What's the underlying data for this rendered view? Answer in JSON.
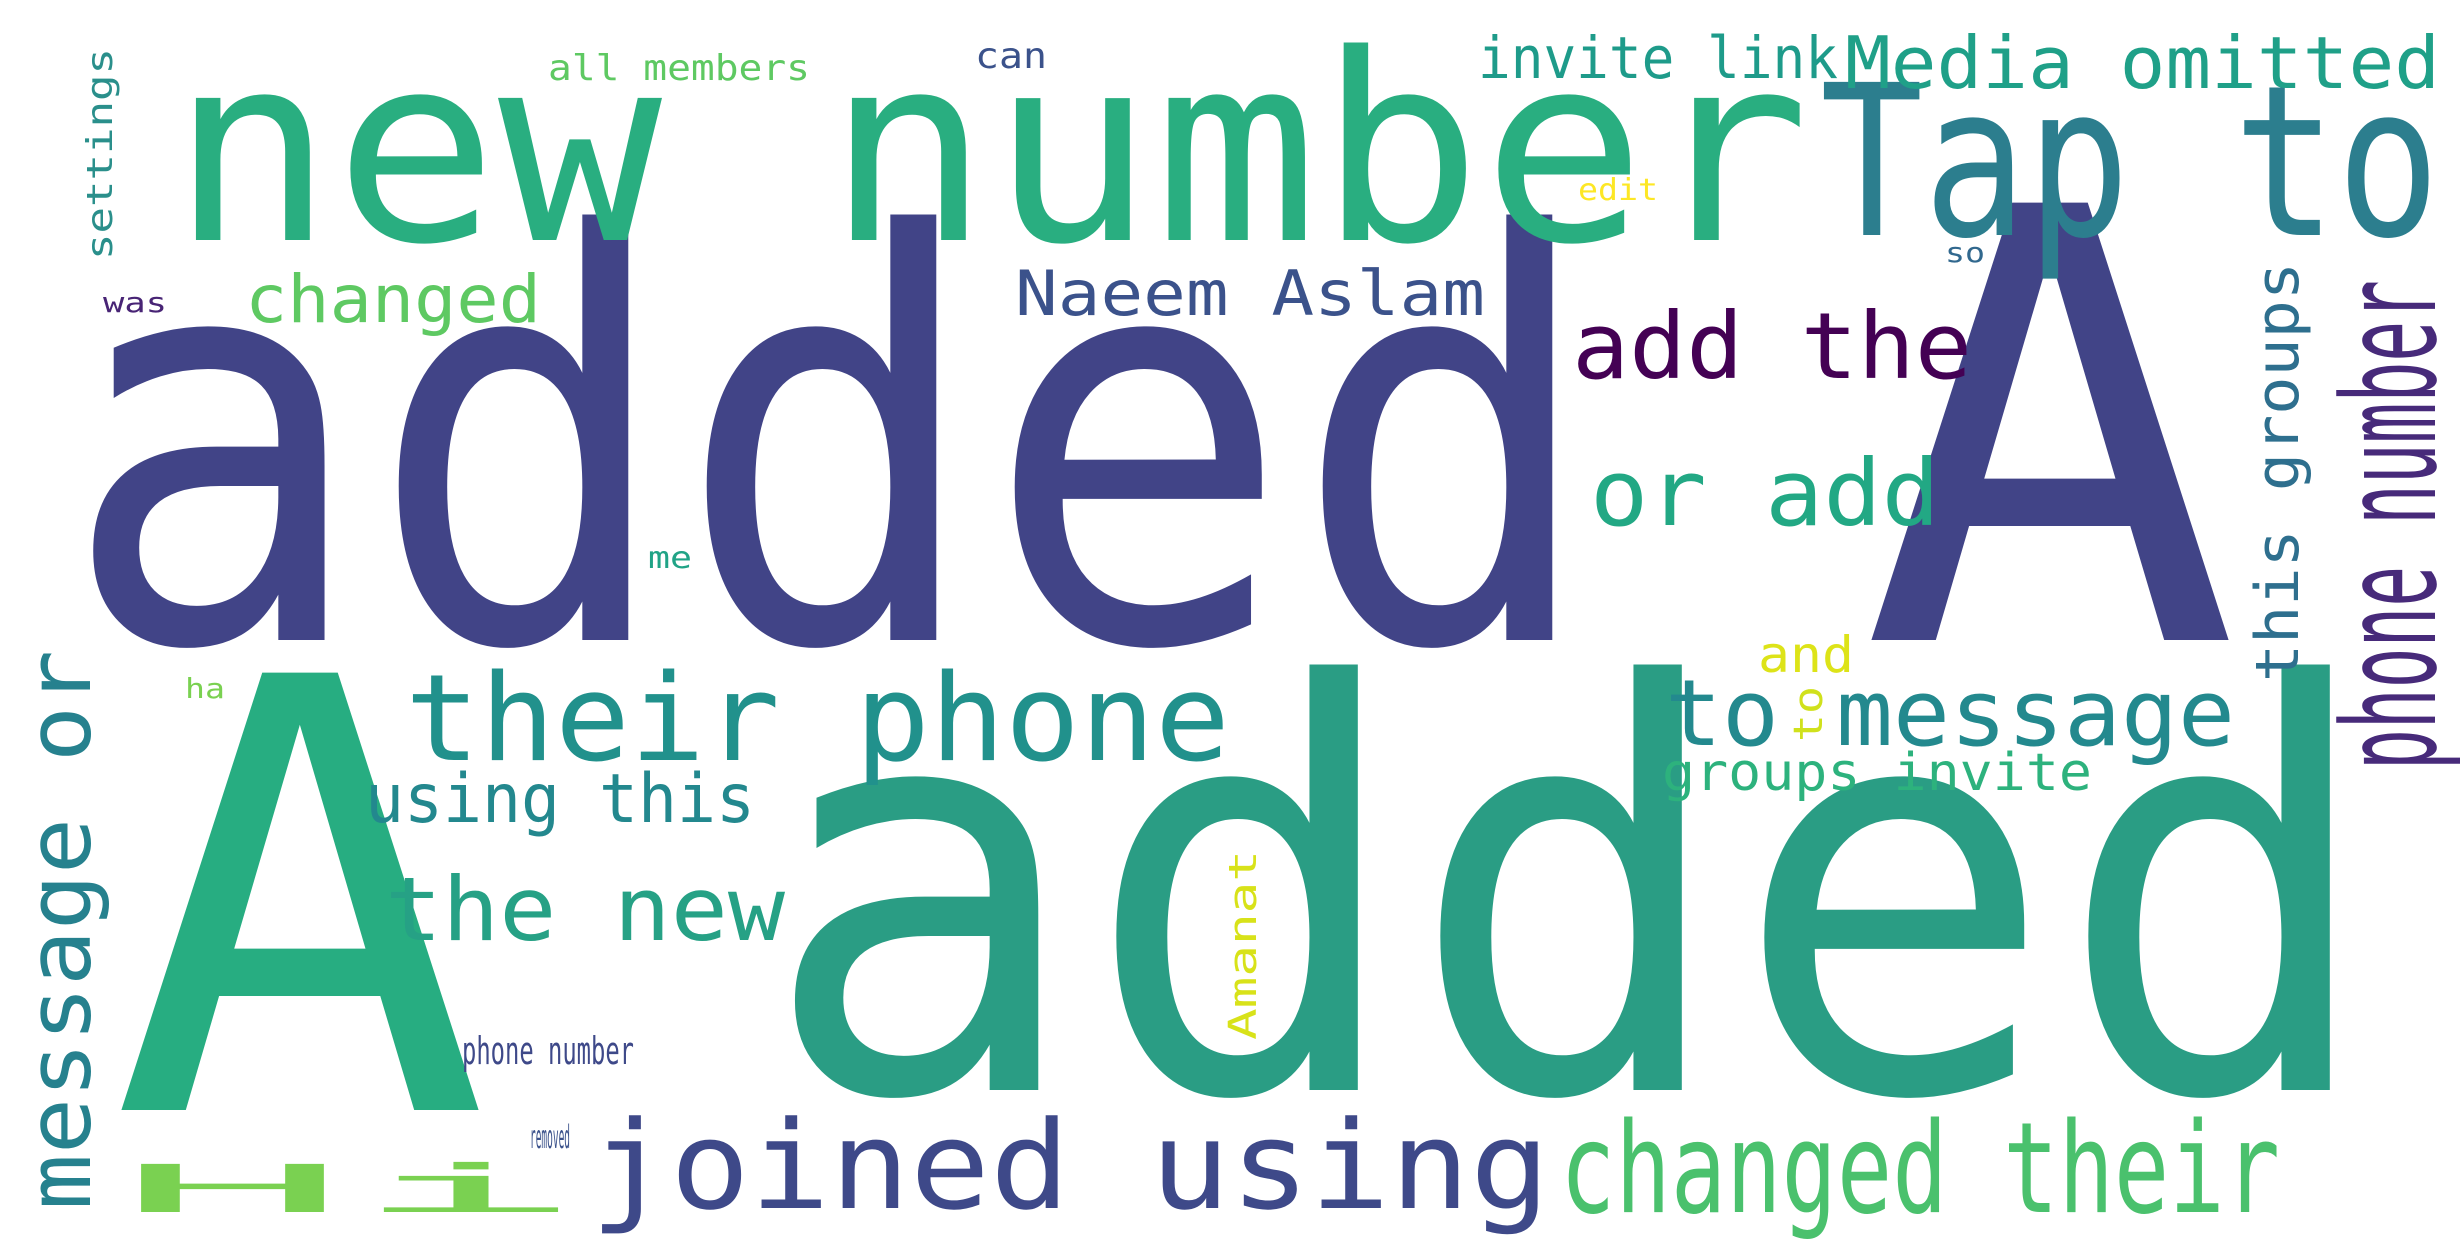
{
  "wordcloud": {
    "words": [
      {
        "text": "added",
        "color": "#414487"
      },
      {
        "text": "added",
        "color": "#2a9d84"
      },
      {
        "text": "A",
        "color": "#414487"
      },
      {
        "text": "A",
        "color": "#27ad81"
      },
      {
        "text": "new number",
        "color": "#29ae80"
      },
      {
        "text": "Tap to",
        "color": "#2c7e8e"
      },
      {
        "text": "Media omitted",
        "color": "#1fa088"
      },
      {
        "text": "invite link",
        "color": "#1e9b8a"
      },
      {
        "text": "all members",
        "color": "#5ec962"
      },
      {
        "text": "can",
        "color": "#3b528b"
      },
      {
        "text": "settings",
        "color": "#2a8f8b"
      },
      {
        "text": "edit",
        "color": "#fde725"
      },
      {
        "text": "so",
        "color": "#31688e"
      },
      {
        "text": "was",
        "color": "#482475"
      },
      {
        "text": "changed",
        "color": "#5ec962"
      },
      {
        "text": "Naeem Aslam",
        "color": "#3b528b"
      },
      {
        "text": "add the",
        "color": "#440154"
      },
      {
        "text": "phone number",
        "color": "#472a7a"
      },
      {
        "text": "this groups",
        "color": "#2e6f8e"
      },
      {
        "text": "or add",
        "color": "#22a884"
      },
      {
        "text": "me",
        "color": "#20a386"
      },
      {
        "text": "their phone",
        "color": "#21918c"
      },
      {
        "text": "to message",
        "color": "#23898e"
      },
      {
        "text": "and",
        "color": "#dde318"
      },
      {
        "text": "to",
        "color": "#d0e11c"
      },
      {
        "text": "groups invite",
        "color": "#2db27d"
      },
      {
        "text": "ha",
        "color": "#7ad151"
      },
      {
        "text": "message or",
        "color": "#26818e"
      },
      {
        "text": "using this",
        "color": "#23888e"
      },
      {
        "text": "the new",
        "color": "#26a185"
      },
      {
        "text": "Amanat",
        "color": "#d8e219"
      },
      {
        "text": "phone number",
        "color": "#3e4989"
      },
      {
        "text": "removed",
        "color": "#3b528b"
      },
      {
        "text": "Hi",
        "color": "#7ad151"
      },
      {
        "text": "joined using",
        "color": "#3e4989"
      },
      {
        "text": "changed their",
        "color": "#4ac16d"
      },
      {
        "text": "number Tap",
        "color": "#25858e"
      }
    ]
  }
}
